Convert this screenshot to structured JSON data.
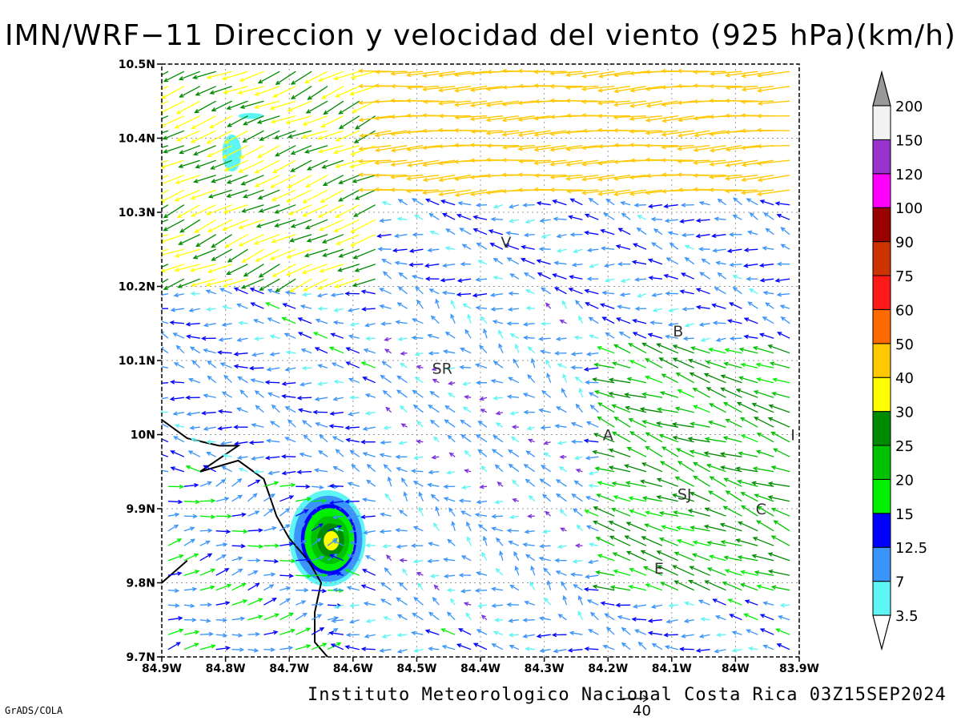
{
  "title": "IMN/WRF−11 Direccion y velocidad del viento (925 hPa)(km/h)",
  "credit": "Instituto Meteorologico Nacional Costa Rica 03Z15SEP2024",
  "software": "GrADS/COLA",
  "reference_vector": {
    "label": "40",
    "value": 40
  },
  "chart_data": {
    "type": "vector-field",
    "title": "IMN/WRF−11 Direccion y velocidad del viento (925 hPa)(km/h)",
    "xlim": [
      -84.9,
      -83.9
    ],
    "ylim": [
      9.7,
      10.5
    ],
    "xticks": [
      {
        "value": -84.9,
        "label": "84.9W"
      },
      {
        "value": -84.8,
        "label": "84.8W"
      },
      {
        "value": -84.7,
        "label": "84.7W"
      },
      {
        "value": -84.6,
        "label": "84.6W"
      },
      {
        "value": -84.5,
        "label": "84.5W"
      },
      {
        "value": -84.4,
        "label": "84.4W"
      },
      {
        "value": -84.3,
        "label": "84.3W"
      },
      {
        "value": -84.2,
        "label": "84.2W"
      },
      {
        "value": -84.1,
        "label": "84.1W"
      },
      {
        "value": -84.0,
        "label": "84W"
      },
      {
        "value": -83.9,
        "label": "83.9W"
      }
    ],
    "yticks": [
      {
        "value": 9.7,
        "label": "9.7N"
      },
      {
        "value": 9.8,
        "label": "9.8N"
      },
      {
        "value": 9.9,
        "label": "9.9N"
      },
      {
        "value": 10.0,
        "label": "10N"
      },
      {
        "value": 10.1,
        "label": "10.1N"
      },
      {
        "value": 10.2,
        "label": "10.2N"
      },
      {
        "value": 10.3,
        "label": "10.3N"
      },
      {
        "value": 10.4,
        "label": "10.4N"
      },
      {
        "value": 10.5,
        "label": "10.5N"
      }
    ],
    "grid": true,
    "colorbar": {
      "placement": "right",
      "levels": [
        "3.5",
        "7",
        "12.5",
        "15",
        "20",
        "25",
        "30",
        "40",
        "50",
        "60",
        "75",
        "90",
        "100",
        "120",
        "150",
        "200"
      ],
      "colors": [
        "#5ef5f5",
        "#3a94fa",
        "#0000ff",
        "#00f000",
        "#00c200",
        "#008a00",
        "#ffff00",
        "#ffc800",
        "#ff6a00",
        "#ff1a1a",
        "#cc3300",
        "#990000",
        "#ff00ff",
        "#9933cc",
        "#f2f2f2"
      ],
      "lower_color": "#ffffff",
      "upper_color": "#999999"
    },
    "station_labels": [
      {
        "label": "V",
        "lon": -84.36,
        "lat": 10.26
      },
      {
        "label": "B",
        "lon": -84.09,
        "lat": 10.14
      },
      {
        "label": "SR",
        "lon": -84.46,
        "lat": 10.09
      },
      {
        "label": "A",
        "lon": -84.2,
        "lat": 10.0
      },
      {
        "label": "I",
        "lon": -83.91,
        "lat": 10.0
      },
      {
        "label": "SJ",
        "lon": -84.08,
        "lat": 9.92
      },
      {
        "label": "C",
        "lon": -83.96,
        "lat": 9.9
      },
      {
        "label": "E",
        "lon": -84.12,
        "lat": 9.82
      }
    ],
    "speed_maxima": [
      {
        "lon": -84.64,
        "lat": 9.86,
        "peak_kmh": 32,
        "rx": 0.06,
        "ry": 0.065
      },
      {
        "lon": -84.79,
        "lat": 10.38,
        "peak_kmh": 5,
        "rx": 0.015,
        "ry": 0.025
      },
      {
        "lon": -84.76,
        "lat": 10.43,
        "peak_kmh": 4,
        "rx": 0.02,
        "ry": 0.004
      }
    ],
    "coastline": [
      [
        [
          -84.9,
          10.02
        ],
        [
          -84.86,
          9.995
        ],
        [
          -84.81,
          9.985
        ],
        [
          -84.78,
          9.985
        ],
        [
          -84.84,
          9.95
        ],
        [
          -84.78,
          9.965
        ],
        [
          -84.74,
          9.94
        ],
        [
          -84.72,
          9.89
        ],
        [
          -84.7,
          9.86
        ],
        [
          -84.67,
          9.83
        ],
        [
          -84.65,
          9.8
        ],
        [
          -84.66,
          9.76
        ],
        [
          -84.66,
          9.72
        ],
        [
          -84.64,
          9.7
        ]
      ],
      [
        [
          -84.9,
          9.8
        ],
        [
          -84.88,
          9.815
        ],
        [
          -84.86,
          9.83
        ]
      ]
    ],
    "wind_field": {
      "lon_start": -84.89,
      "lon_step": 0.025,
      "ncols": 40,
      "lat_start": 9.71,
      "lat_step": 0.02,
      "nrows": 40,
      "regimes": [
        {
          "name": "northeasterly jet",
          "lat_min": 10.33,
          "lon_min": -84.55,
          "u": -45,
          "v": -3
        },
        {
          "name": "northwest inflow",
          "lat_min": 10.2,
          "lon_max": -84.55,
          "u": -28,
          "v": -12
        },
        {
          "name": "central basin",
          "lat_range": [
            9.75,
            10.18
          ],
          "lon_range": [
            -84.55,
            -84.22
          ],
          "u": -6,
          "v": 3
        },
        {
          "name": "central valley convergence",
          "lat_range": [
            9.78,
            10.12
          ],
          "lon_min": -84.2,
          "u": -22,
          "v": 8
        },
        {
          "name": "pacific southwesterly",
          "lat_max": 9.95,
          "lon_max": -84.62,
          "u": 12,
          "v": 3
        }
      ]
    }
  }
}
